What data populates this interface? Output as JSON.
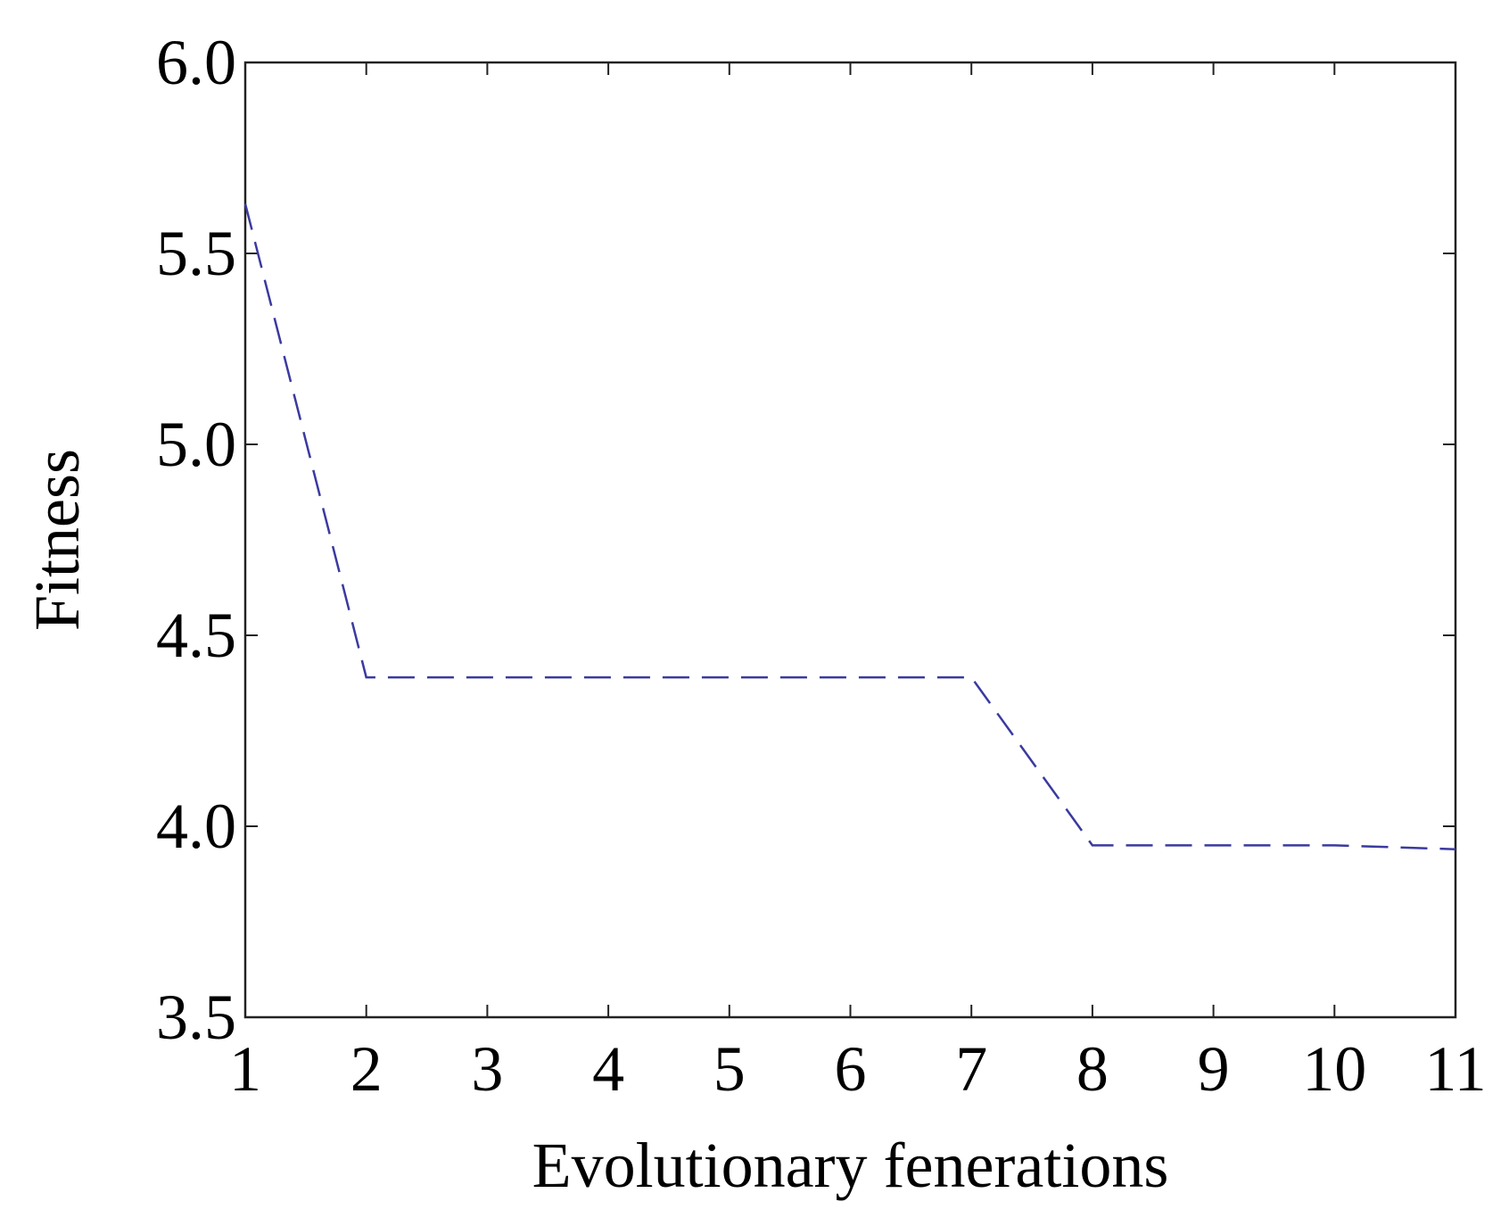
{
  "chart_data": {
    "type": "line",
    "title": "",
    "xlabel": "Evolutionary fenerations",
    "ylabel": "Fitness",
    "xlim": [
      1,
      11
    ],
    "ylim": [
      3.5,
      6.0
    ],
    "x_ticks": [
      "1",
      "2",
      "3",
      "4",
      "5",
      "6",
      "7",
      "8",
      "9",
      "10",
      "11"
    ],
    "y_ticks": [
      "3.5",
      "4.0",
      "4.5",
      "5.0",
      "5.5",
      "6.0"
    ],
    "grid": false,
    "legend": "none",
    "series": [
      {
        "x": [
          1,
          2,
          3,
          4,
          5,
          6,
          7,
          8,
          9,
          10,
          11
        ],
        "y": [
          5.63,
          4.39,
          4.39,
          4.39,
          4.39,
          4.39,
          4.39,
          3.95,
          3.95,
          3.95,
          3.94
        ],
        "color": "#3a3aa0",
        "line_style": "dashed"
      }
    ]
  }
}
